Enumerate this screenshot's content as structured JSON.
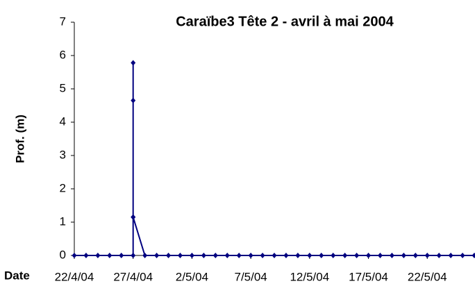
{
  "chart_data": {
    "type": "line",
    "title": "Caraïbe3 Tête 2 - avril à mai 2004",
    "y_label": "Prof. (m)",
    "x_label": "Date",
    "x": [
      "2004-04-22",
      "2004-04-23",
      "2004-04-24",
      "2004-04-25",
      "2004-04-26",
      "2004-04-27",
      "2004-04-27",
      "2004-04-27",
      "2004-04-27",
      "2004-04-27",
      "2004-04-28",
      "2004-04-29",
      "2004-04-30",
      "2004-05-01",
      "2004-05-02",
      "2004-05-03",
      "2004-05-04",
      "2004-05-05",
      "2004-05-06",
      "2004-05-07",
      "2004-05-08",
      "2004-05-09",
      "2004-05-10",
      "2004-05-11",
      "2004-05-12",
      "2004-05-13",
      "2004-05-14",
      "2004-05-15",
      "2004-05-16",
      "2004-05-17",
      "2004-05-18",
      "2004-05-19",
      "2004-05-20",
      "2004-05-21",
      "2004-05-22",
      "2004-05-23",
      "2004-05-24",
      "2004-05-25",
      "2004-05-26"
    ],
    "series": [
      {
        "name": "Prof. (m)",
        "color": "#000080",
        "values": [
          0,
          0,
          0,
          0,
          0,
          0,
          1.15,
          5.78,
          4.65,
          1.15,
          0,
          0,
          0,
          0,
          0,
          0,
          0,
          0,
          0,
          0,
          0,
          0,
          0,
          0,
          0,
          0,
          0,
          0,
          0,
          0,
          0,
          0,
          0,
          0,
          0,
          0,
          0,
          0,
          0
        ]
      }
    ],
    "xlim": [
      "2004-04-22",
      "2004-05-26"
    ],
    "xticks": [
      {
        "value": "2004-04-22",
        "label": "22/4/04"
      },
      {
        "value": "2004-04-27",
        "label": "27/4/04"
      },
      {
        "value": "2004-05-02",
        "label": "2/5/04"
      },
      {
        "value": "2004-05-07",
        "label": "7/5/04"
      },
      {
        "value": "2004-05-12",
        "label": "12/5/04"
      },
      {
        "value": "2004-05-17",
        "label": "17/5/04"
      },
      {
        "value": "2004-05-22",
        "label": "22/5/04"
      }
    ],
    "ylim": [
      0,
      7
    ],
    "yticks": [
      0,
      1,
      2,
      3,
      4,
      5,
      6,
      7
    ],
    "grid": false
  }
}
